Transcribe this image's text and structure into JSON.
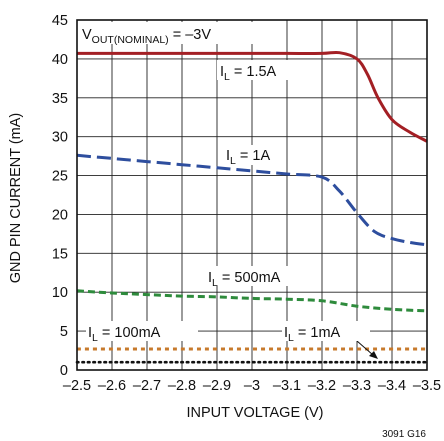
{
  "chart_data": {
    "type": "line",
    "title": "",
    "xlabel": "INPUT VOLTAGE (V)",
    "ylabel": "GND PIN CURRENT (mA)",
    "xlim": [
      -2.5,
      -3.5
    ],
    "ylim": [
      0,
      45
    ],
    "x_ticks": [
      "–2.5",
      "–2.6",
      "–2.7",
      "–2.8",
      "–2.9",
      "–3",
      "–3.1",
      "–3.2",
      "–3.3",
      "–3.4",
      "–3.5"
    ],
    "y_ticks": [
      "0",
      "5",
      "10",
      "15",
      "20",
      "25",
      "30",
      "35",
      "40",
      "45"
    ],
    "grid": true,
    "series": [
      {
        "name": "I_L = 1.5A",
        "color": "#a31f24",
        "style": "solid",
        "x": [
          -2.5,
          -2.6,
          -2.7,
          -2.8,
          -2.9,
          -3.0,
          -3.1,
          -3.2,
          -3.25,
          -3.3,
          -3.33,
          -3.36,
          -3.4,
          -3.45,
          -3.5
        ],
        "y": [
          40.7,
          40.7,
          40.7,
          40.7,
          40.7,
          40.7,
          40.7,
          40.7,
          40.8,
          40.0,
          38.0,
          35.0,
          32.2,
          30.6,
          29.4
        ]
      },
      {
        "name": "I_L = 1A",
        "color": "#2e4e9e",
        "style": "long-dash",
        "x": [
          -2.5,
          -2.6,
          -2.7,
          -2.8,
          -2.9,
          -3.0,
          -3.1,
          -3.2,
          -3.25,
          -3.3,
          -3.35,
          -3.4,
          -3.45,
          -3.5
        ],
        "y": [
          27.6,
          27.2,
          26.8,
          26.4,
          26.0,
          25.6,
          25.2,
          24.8,
          23.0,
          20.2,
          17.8,
          16.9,
          16.4,
          16.1
        ]
      },
      {
        "name": "I_L = 500mA",
        "color": "#2e8b3c",
        "style": "dash",
        "x": [
          -2.5,
          -2.6,
          -2.7,
          -2.8,
          -2.9,
          -3.0,
          -3.1,
          -3.2,
          -3.3,
          -3.4,
          -3.5
        ],
        "y": [
          10.2,
          9.9,
          9.7,
          9.5,
          9.4,
          9.2,
          9.1,
          8.9,
          8.2,
          7.8,
          7.6
        ]
      },
      {
        "name": "I_L = 100mA",
        "color": "#c77a2c",
        "style": "short-dash",
        "x": [
          -2.5,
          -3.5
        ],
        "y": [
          2.7,
          2.7
        ]
      },
      {
        "name": "I_L = 1mA",
        "color": "#111111",
        "style": "dot",
        "x": [
          -2.5,
          -3.5
        ],
        "y": [
          1.0,
          1.0
        ]
      }
    ],
    "annotations": {
      "vout": {
        "main": "V",
        "sub": "OUT(NOMINAL)",
        "rest": " = –3V"
      },
      "il15": {
        "main": "I",
        "sub": "L",
        "rest": " = 1.5A"
      },
      "il1": {
        "main": "I",
        "sub": "L",
        "rest": " = 1A"
      },
      "il500": {
        "main": "I",
        "sub": "L",
        "rest": " = 500mA"
      },
      "il100": {
        "main": "I",
        "sub": "L",
        "rest": " = 100mA"
      },
      "il1m": {
        "main": "I",
        "sub": "L",
        "rest": " = 1mA"
      }
    },
    "figure_code": "3091 G16"
  }
}
